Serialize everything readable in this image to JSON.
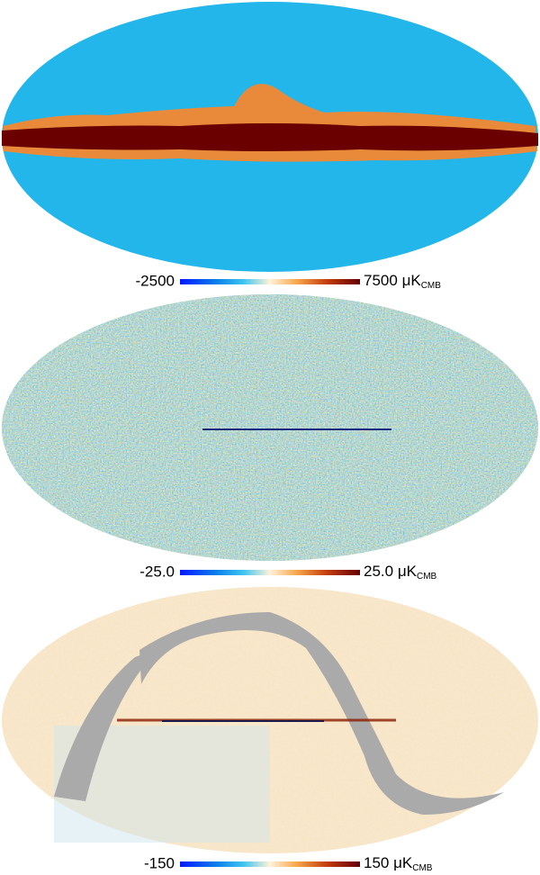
{
  "panels": [
    {
      "min_label": "-2500",
      "max_label": "7500",
      "unit": "μK",
      "unit_sub": "CMB"
    },
    {
      "min_label": "-25.0",
      "max_label": "25.0",
      "unit": "μK",
      "unit_sub": "CMB"
    },
    {
      "min_label": "-150",
      "max_label": "150",
      "unit": "μK",
      "unit_sub": "CMB"
    }
  ]
}
